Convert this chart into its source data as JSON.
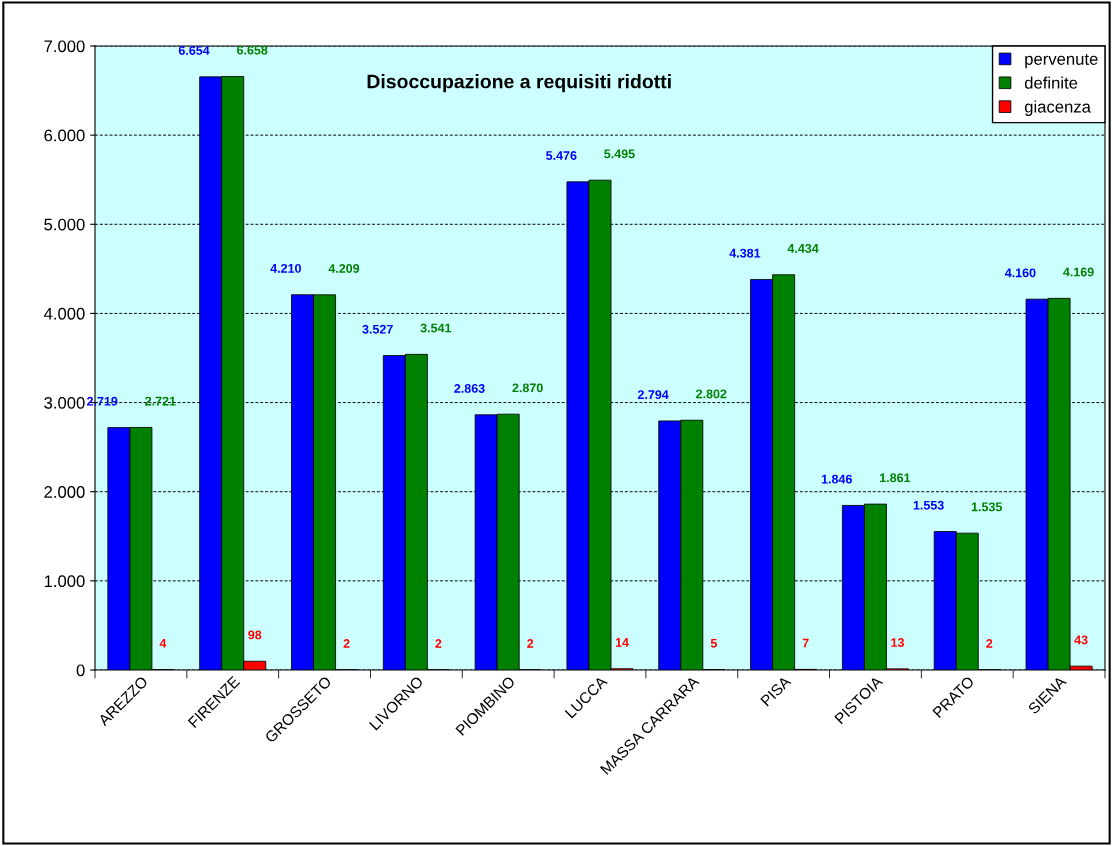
{
  "chart_data": {
    "type": "bar",
    "title": "Disoccupazione a requisiti ridotti",
    "categories": [
      "AREZZO",
      "FIRENZE",
      "GROSSETO",
      "LIVORNO",
      "PIOMBINO",
      "LUCCA",
      "MASSA CARRARA",
      "PISA",
      "PISTOIA",
      "PRATO",
      "SIENA"
    ],
    "series": [
      {
        "name": "pervenute",
        "color": "#0000ff",
        "values": [
          2719,
          6654,
          4210,
          3527,
          2863,
          5476,
          2794,
          4381,
          1846,
          1553,
          4160
        ],
        "value_labels": [
          "2.719",
          "6.654",
          "4.210",
          "3.527",
          "2.863",
          "5.476",
          "2.794",
          "4.381",
          "1.846",
          "1.553",
          "4.160"
        ]
      },
      {
        "name": "definite",
        "color": "#008000",
        "values": [
          2721,
          6658,
          4209,
          3541,
          2870,
          5495,
          2802,
          4434,
          1861,
          1535,
          4169
        ],
        "value_labels": [
          "2.721",
          "6.658",
          "4.209",
          "3.541",
          "2.870",
          "5.495",
          "2.802",
          "4.434",
          "1.861",
          "1.535",
          "4.169"
        ]
      },
      {
        "name": "giacenza",
        "color": "#ff0000",
        "values": [
          4,
          98,
          2,
          2,
          2,
          14,
          5,
          7,
          13,
          2,
          43
        ],
        "value_labels": [
          "4",
          "98",
          "2",
          "2",
          "2",
          "14",
          "5",
          "7",
          "13",
          "2",
          "43"
        ]
      }
    ],
    "ylim": [
      0,
      7000
    ],
    "yticks": [
      0,
      {
        "value": 1000,
        "label": "1.000"
      },
      {
        "value": 2000,
        "label": "2.000"
      },
      {
        "value": 3000,
        "label": "3.000"
      },
      {
        "value": 4000,
        "label": "4.000"
      },
      {
        "value": 5000,
        "label": "5.000"
      },
      {
        "value": 6000,
        "label": "6.000"
      },
      {
        "value": 7000,
        "label": "7.000"
      }
    ],
    "grid": "y",
    "legend": "top right"
  }
}
